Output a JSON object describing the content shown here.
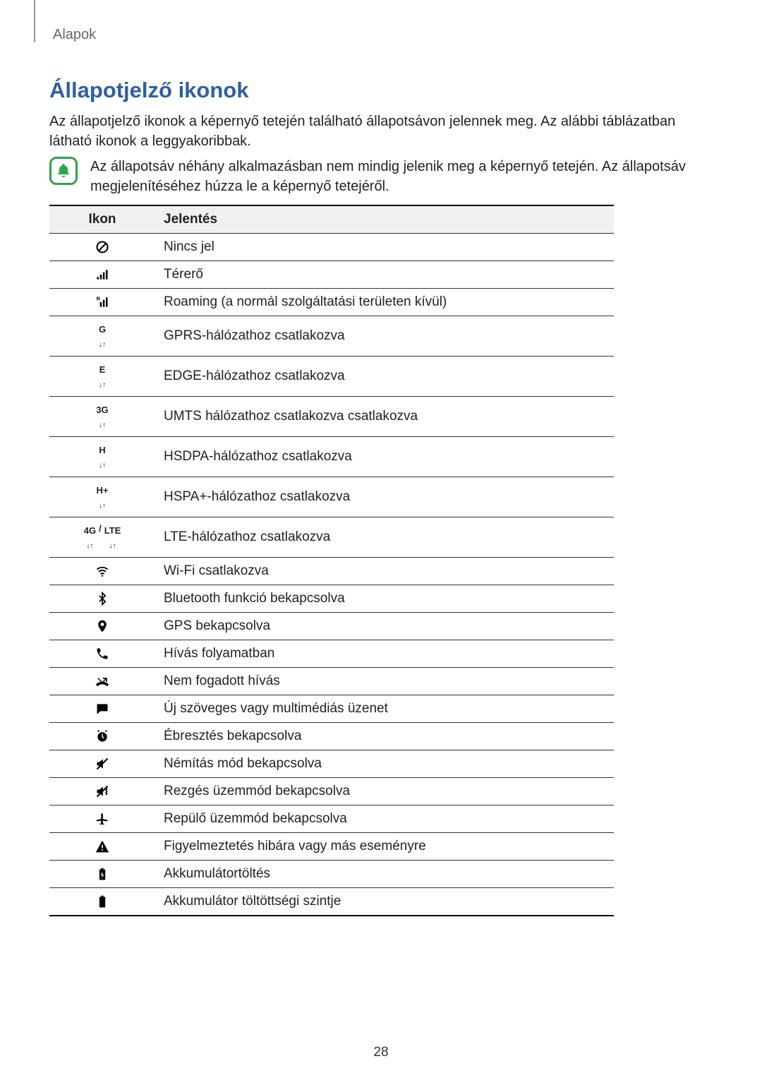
{
  "section_label": "Alapok",
  "title": "Állapotjelző ikonok",
  "intro": "Az állapotjelző ikonok a képernyő tetején található állapotsávon jelennek meg. Az alábbi táblázatban látható ikonok a leggyakoribbak.",
  "note": "Az állapotsáv néhány alkalmazásban nem mindig jelenik meg a képernyő tetején. Az állapotsáv megjelenítéséhez húzza le a képernyő tetejéről.",
  "table": {
    "headers": {
      "icon": "Ikon",
      "meaning": "Jelentés"
    },
    "rows": [
      {
        "icon_id": "no-signal",
        "meaning": "Nincs jel"
      },
      {
        "icon_id": "signal",
        "meaning": "Térerő"
      },
      {
        "icon_id": "roaming",
        "meaning": "Roaming (a normál szolgáltatási területen kívül)"
      },
      {
        "icon_id": "gprs",
        "icon_text": "G",
        "meaning": "GPRS-hálózathoz csatlakozva"
      },
      {
        "icon_id": "edge",
        "icon_text": "E",
        "meaning": "EDGE-hálózathoz csatlakozva"
      },
      {
        "icon_id": "umts",
        "icon_text": "3G",
        "meaning": "UMTS hálózathoz csatlakozva csatlakozva"
      },
      {
        "icon_id": "hsdpa",
        "icon_text": "H",
        "meaning": "HSDPA-hálózathoz csatlakozva"
      },
      {
        "icon_id": "hspa-plus",
        "icon_text": "H+",
        "meaning": "HSPA+-hálózathoz csatlakozva"
      },
      {
        "icon_id": "lte",
        "icon_text": "4G / LTE",
        "meaning": "LTE-hálózathoz csatlakozva"
      },
      {
        "icon_id": "wifi",
        "meaning": "Wi-Fi csatlakozva"
      },
      {
        "icon_id": "bluetooth",
        "meaning": "Bluetooth funkció bekapcsolva"
      },
      {
        "icon_id": "gps",
        "meaning": "GPS bekapcsolva"
      },
      {
        "icon_id": "call",
        "meaning": "Hívás folyamatban"
      },
      {
        "icon_id": "missed-call",
        "meaning": "Nem fogadott hívás"
      },
      {
        "icon_id": "message",
        "meaning": "Új szöveges vagy multimédiás üzenet"
      },
      {
        "icon_id": "alarm",
        "meaning": "Ébresztés bekapcsolva"
      },
      {
        "icon_id": "mute",
        "meaning": "Némítás mód bekapcsolva"
      },
      {
        "icon_id": "vibrate",
        "meaning": "Rezgés üzemmód bekapcsolva"
      },
      {
        "icon_id": "airplane",
        "meaning": "Repülő üzemmód bekapcsolva"
      },
      {
        "icon_id": "warning",
        "meaning": "Figyelmeztetés hibára vagy más eseményre"
      },
      {
        "icon_id": "charging",
        "meaning": "Akkumulátortöltés"
      },
      {
        "icon_id": "battery",
        "meaning": "Akkumulátor töltöttségi szintje"
      }
    ]
  },
  "page_number": "28",
  "colors": {
    "title": "#2e5fa3",
    "text": "#222222",
    "section_label": "#666666",
    "note_icon_border": "#2aa64a",
    "table_header_bg": "#f0f0f0",
    "table_border": "#333333"
  }
}
